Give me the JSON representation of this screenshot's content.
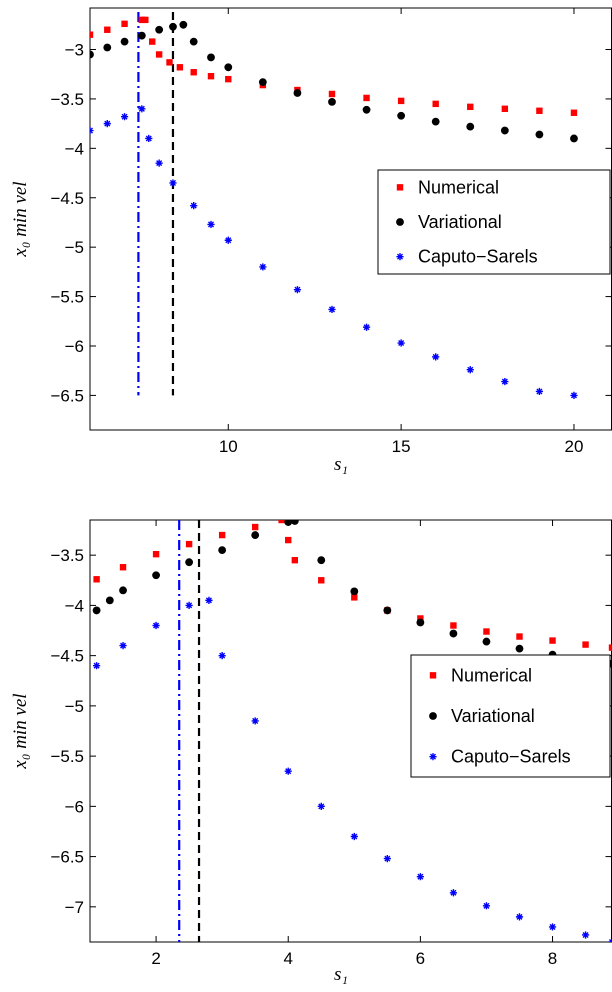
{
  "chart_data": [
    {
      "type": "scatter",
      "title": "",
      "xlabel": "s₁",
      "ylabel": "x₀ min vel",
      "xlim": [
        6,
        21.1
      ],
      "ylim": [
        -6.85,
        -2.58
      ],
      "xticks": [
        10,
        15,
        20
      ],
      "yticks": [
        -3,
        -3.5,
        -4,
        -4.5,
        -5,
        -5.5,
        -6,
        -6.5
      ],
      "grid": false,
      "legend_position": "center-right",
      "series": [
        {
          "name": "Numerical",
          "color": "#ff0000",
          "marker": "square",
          "x": [
            6.0,
            6.5,
            7.0,
            7.5,
            7.6,
            7.8,
            8.0,
            8.3,
            8.6,
            9.0,
            9.5,
            10.0,
            11.0,
            12.0,
            13.0,
            14.0,
            15.0,
            16.0,
            17.0,
            18.0,
            19.0,
            20.0
          ],
          "y": [
            -2.85,
            -2.8,
            -2.74,
            -2.7,
            -2.7,
            -2.92,
            -3.05,
            -3.13,
            -3.18,
            -3.23,
            -3.27,
            -3.3,
            -3.36,
            -3.41,
            -3.45,
            -3.49,
            -3.52,
            -3.55,
            -3.58,
            -3.6,
            -3.62,
            -3.64
          ]
        },
        {
          "name": "Variational",
          "color": "#000000",
          "marker": "circle",
          "x": [
            6.0,
            6.5,
            7.0,
            7.5,
            8.0,
            8.4,
            8.7,
            9.0,
            9.5,
            10.0,
            11.0,
            12.0,
            13.0,
            14.0,
            15.0,
            16.0,
            17.0,
            18.0,
            19.0,
            20.0
          ],
          "y": [
            -3.05,
            -2.98,
            -2.92,
            -2.86,
            -2.8,
            -2.77,
            -2.75,
            -2.92,
            -3.08,
            -3.18,
            -3.33,
            -3.44,
            -3.53,
            -3.61,
            -3.67,
            -3.73,
            -3.78,
            -3.82,
            -3.86,
            -3.9
          ]
        },
        {
          "name": "Caputo−Sarels",
          "color": "#0000ff",
          "marker": "star",
          "x": [
            6.0,
            6.5,
            7.0,
            7.5,
            7.7,
            8.0,
            8.4,
            9.0,
            9.5,
            10.0,
            11.0,
            12.0,
            13.0,
            14.0,
            15.0,
            16.0,
            17.0,
            18.0,
            19.0,
            20.0
          ],
          "y": [
            -3.82,
            -3.75,
            -3.68,
            -3.6,
            -3.9,
            -4.15,
            -4.35,
            -4.58,
            -4.77,
            -4.93,
            -5.2,
            -5.43,
            -5.63,
            -5.81,
            -5.97,
            -6.11,
            -6.24,
            -6.36,
            -6.46,
            -6.5
          ]
        }
      ],
      "vlines": [
        {
          "x": 7.4,
          "color": "#0000ff",
          "style": "dashdot",
          "y_range": [
            -6.5,
            -2.62
          ]
        },
        {
          "x": 8.4,
          "color": "#000000",
          "style": "dashed",
          "y_range": [
            -6.5,
            -2.62
          ]
        }
      ]
    },
    {
      "type": "scatter",
      "title": "",
      "xlabel": "s₁",
      "ylabel": "x₀ min vel",
      "xlim": [
        1,
        8.9
      ],
      "ylim": [
        -7.35,
        -3.15
      ],
      "xticks": [
        2,
        4,
        6,
        8
      ],
      "yticks": [
        -3.5,
        -4,
        -4.5,
        -5,
        -5.5,
        -6,
        -6.5,
        -7
      ],
      "grid": false,
      "legend_position": "center-right",
      "series": [
        {
          "name": "Numerical",
          "color": "#ff0000",
          "marker": "square",
          "x": [
            1.1,
            1.5,
            2.0,
            2.5,
            3.0,
            3.5,
            3.9,
            4.0,
            4.1,
            4.5,
            5.0,
            5.5,
            6.0,
            6.5,
            7.0,
            7.5,
            8.0,
            8.5,
            8.9
          ],
          "y": [
            -3.74,
            -3.62,
            -3.49,
            -3.39,
            -3.3,
            -3.22,
            -3.15,
            -3.35,
            -3.55,
            -3.75,
            -3.92,
            -4.05,
            -4.13,
            -4.2,
            -4.26,
            -4.31,
            -4.35,
            -4.39,
            -4.42
          ]
        },
        {
          "name": "Variational",
          "color": "#000000",
          "marker": "circle",
          "x": [
            1.1,
            1.3,
            1.5,
            2.0,
            2.5,
            3.0,
            3.5,
            4.0,
            4.1,
            4.5,
            5.0,
            5.5,
            6.0,
            6.5,
            7.0,
            7.5,
            8.0,
            8.5,
            8.9
          ],
          "y": [
            -4.05,
            -3.95,
            -3.85,
            -3.7,
            -3.57,
            -3.45,
            -3.3,
            -3.17,
            -3.16,
            -3.55,
            -3.86,
            -4.05,
            -4.17,
            -4.28,
            -4.36,
            -4.43,
            -4.49,
            -4.54,
            -4.58
          ]
        },
        {
          "name": "Caputo−Sarels",
          "color": "#0000ff",
          "marker": "star",
          "x": [
            1.1,
            1.5,
            2.0,
            2.5,
            2.8,
            3.0,
            3.5,
            4.0,
            4.5,
            5.0,
            5.5,
            6.0,
            6.5,
            7.0,
            7.5,
            8.0,
            8.5,
            8.9
          ],
          "y": [
            -4.6,
            -4.4,
            -4.2,
            -4.0,
            -3.95,
            -4.5,
            -5.15,
            -5.65,
            -6.0,
            -6.3,
            -6.52,
            -6.7,
            -6.86,
            -6.99,
            -7.1,
            -7.2,
            -7.28,
            -7.35
          ]
        }
      ],
      "vlines": [
        {
          "x": 2.35,
          "color": "#0000ff",
          "style": "dashdot",
          "y_range": [
            -7.35,
            -3.15
          ]
        },
        {
          "x": 2.65,
          "color": "#000000",
          "style": "dashed",
          "y_range": [
            -7.35,
            -3.15
          ]
        }
      ]
    }
  ]
}
